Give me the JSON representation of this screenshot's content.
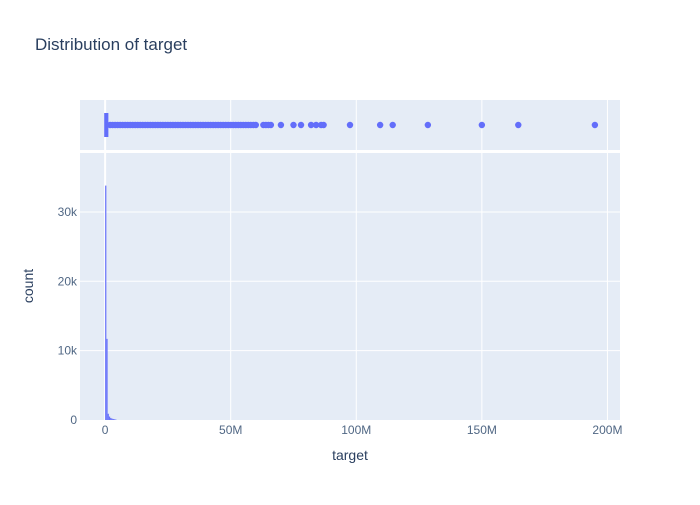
{
  "chart_data": {
    "type": "histogram",
    "title": "Distribution of target",
    "xlabel": "target",
    "ylabel": "count",
    "x_range": [
      -10000000,
      205000000
    ],
    "x_ticks": [
      0,
      50000000,
      100000000,
      150000000,
      200000000
    ],
    "x_tick_labels": [
      "0",
      "50M",
      "100M",
      "150M",
      "200M"
    ],
    "y_range": [
      0,
      38500
    ],
    "y_ticks": [
      0,
      10000,
      20000,
      30000
    ],
    "y_tick_labels": [
      "0",
      "10k",
      "20k",
      "30k"
    ],
    "bin_width": 500000,
    "bins": [
      {
        "x0": 0,
        "count": 33800
      },
      {
        "x0": 500000,
        "count": 11700
      },
      {
        "x0": 1000000,
        "count": 900
      },
      {
        "x0": 1500000,
        "count": 500
      },
      {
        "x0": 2000000,
        "count": 300
      },
      {
        "x0": 2500000,
        "count": 200
      },
      {
        "x0": 3000000,
        "count": 150
      },
      {
        "x0": 3500000,
        "count": 100
      },
      {
        "x0": 4000000,
        "count": 70
      }
    ],
    "marginal": {
      "type": "box",
      "q1": 30000,
      "median": 250000,
      "q3": 900000,
      "whisker_low": 0,
      "whisker_high": 1500000,
      "outliers": [
        2000000,
        3000000,
        4000000,
        5000000,
        6000000,
        7000000,
        8000000,
        9000000,
        10000000,
        11000000,
        12000000,
        13000000,
        14000000,
        15000000,
        16000000,
        17000000,
        18000000,
        19000000,
        20000000,
        21000000,
        22000000,
        23000000,
        24000000,
        25000000,
        26000000,
        27000000,
        28000000,
        29000000,
        30000000,
        31000000,
        32000000,
        33000000,
        34000000,
        35000000,
        36000000,
        37000000,
        38000000,
        39000000,
        40000000,
        41000000,
        42000000,
        43000000,
        44000000,
        45000000,
        46000000,
        47000000,
        48000000,
        49000000,
        50000000,
        51000000,
        52000000,
        53000000,
        54000000,
        55000000,
        56000000,
        57000000,
        58000000,
        59000000,
        60000000,
        63000000,
        64000000,
        65000000,
        66000000,
        70000000,
        75000000,
        78000000,
        82000000,
        84000000,
        86000000,
        87000000,
        97500000,
        109500000,
        114500000,
        128500000,
        150000000,
        164500000,
        195000000
      ]
    },
    "colors": {
      "series": "#636efa",
      "plot_bg": "#e5ecf6",
      "grid": "#ffffff",
      "text": "#2a3f5f",
      "tick_text": "#506784"
    },
    "grid": true,
    "legend": "none"
  }
}
